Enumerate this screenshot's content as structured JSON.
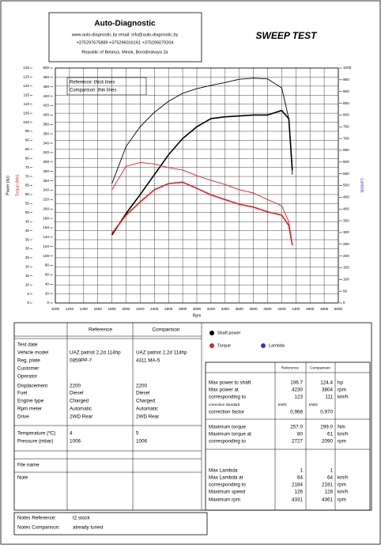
{
  "header": {
    "company": "Auto-Diagnostic",
    "web_email": "www.auto-diagnostic.by    email: info@auto-diagnostic.by",
    "phones": "+375297675889  +375296016161  +375295079204",
    "address": "Republic of Belarus, Minsk, Borodinskaya 2a",
    "title": "SWEEP TEST"
  },
  "chart_data": {
    "type": "line",
    "x_label": "Rpm",
    "y_label": "Power (hp)",
    "y2_label": "Torque (Nm)",
    "y3_label": "Lambda",
    "line_key": [
      "Reference: thick lines",
      "Comparison: thin lines"
    ],
    "xlim": [
      1000,
      5000
    ],
    "xticks": [
      1000,
      1200,
      1400,
      1600,
      1800,
      2000,
      2200,
      2400,
      2600,
      2800,
      3000,
      3200,
      3400,
      3600,
      3800,
      4000,
      4200,
      4400,
      4600,
      4800,
      5000
    ],
    "ylim": [
      0,
      130
    ],
    "yticks": [
      0,
      5,
      10,
      15,
      20,
      25,
      30,
      35,
      40,
      45,
      50,
      55,
      60,
      65,
      70,
      75,
      80,
      85,
      90,
      95,
      100,
      105,
      110,
      115,
      120,
      125,
      130
    ],
    "y2lim": [
      0,
      500
    ],
    "y2ticks": [
      0,
      20,
      40,
      60,
      80,
      100,
      120,
      140,
      160,
      180,
      200,
      220,
      240,
      260,
      280,
      300,
      320,
      340,
      360,
      380,
      400,
      420,
      440,
      460,
      480,
      500
    ],
    "y3lim": [
      0,
      1000
    ],
    "y3ticks": [
      0,
      50,
      100,
      150,
      200,
      250,
      300,
      350,
      400,
      450,
      500,
      550,
      600,
      650,
      700,
      750,
      800,
      850,
      900,
      950,
      1000
    ],
    "grid": true,
    "x": [
      1800,
      2000,
      2200,
      2400,
      2600,
      2800,
      3000,
      3200,
      3400,
      3600,
      3800,
      4000,
      4200,
      4300,
      4350
    ],
    "series": [
      {
        "color": "#000000",
        "line": "thick",
        "values": [
          37.6,
          49.5,
          60,
          71,
          82,
          91,
          97.5,
          102,
          103,
          103.5,
          104,
          104,
          106.5,
          102,
          73.5
        ]
      },
      {
        "color": "#000000",
        "line": "thin",
        "values": [
          66,
          86.6,
          97.6,
          105.5,
          111.6,
          116,
          118.6,
          120.4,
          122,
          123.8,
          124.4,
          124,
          119,
          102,
          71
        ]
      },
      {
        "color": "#e02020",
        "line": "thick",
        "axis": "y2",
        "values": [
          148,
          187,
          215,
          241,
          254,
          257,
          244,
          230,
          220,
          210,
          204,
          194,
          187,
          165,
          123
        ]
      },
      {
        "color": "#e02020",
        "line": "thin",
        "axis": "y2",
        "values": [
          241,
          291,
          299,
          296,
          288,
          283,
          271,
          261,
          252,
          241,
          234,
          220,
          207,
          173,
          123
        ]
      }
    ],
    "legend": [
      {
        "label": "Shaft power",
        "color": "#000000"
      },
      {
        "label": "Torque",
        "color": "#e02020"
      },
      {
        "label": "Lambda",
        "color": "#3a2fd0"
      }
    ]
  },
  "info_table": {
    "headers": [
      "Reference",
      "Comparison"
    ],
    "rows": [
      [
        "Test date"
      ],
      [
        "Vehicle model",
        "UAZ patriot 2,2d 114hp",
        "UAZ patriot 2,2d 114hp"
      ],
      [
        "Reg. plate",
        "0859PP-7",
        "4311 MA-5"
      ],
      [
        "Customer"
      ],
      [
        "Operator"
      ],
      [
        "Displacement",
        "2200",
        "2200"
      ],
      [
        "Fuel",
        "Diesel",
        "Diesel"
      ],
      [
        "Engine type",
        "Charged",
        "Charged"
      ],
      [
        "Rpm meter",
        "Automatic",
        "Automatic"
      ],
      [
        "Drive",
        "2WD Rear",
        "2WD Rear"
      ],
      [
        "Temperature (ºC)",
        "4",
        "5"
      ],
      [
        "Pressure (mbar)",
        "1006",
        "1006"
      ],
      [
        "File name"
      ],
      [
        "Note"
      ]
    ]
  },
  "results": {
    "headers": [
      "Reference",
      "Comparison"
    ],
    "rows": [
      [
        "Max power to shaft",
        "106.7",
        "124.4",
        "hp"
      ],
      [
        "Max power at",
        "4230",
        "3804",
        "rpm"
      ],
      [
        "corresponding to",
        "123",
        "111",
        "km/h"
      ],
      [
        "correction standard",
        "EWG",
        "EWG"
      ],
      [
        "correction factor",
        "0,968",
        "0,970"
      ],
      [
        "Maximum torque",
        "257.0",
        "299.0",
        "Nm"
      ],
      [
        "Maximum torque at",
        "80",
        "61",
        "km/h"
      ],
      [
        "corresponding to",
        "2727",
        "2090",
        "rpm"
      ],
      [
        "Max Lambda",
        "1",
        "1"
      ],
      [
        "Max Lambda at",
        "64",
        "64",
        "km/h"
      ],
      [
        "corresponding to",
        "2184",
        "2181",
        "rpm"
      ],
      [
        "Maximum speed",
        "126",
        "128",
        "km/h"
      ],
      [
        "Maximum rpm",
        "4331",
        "4361",
        "rpm"
      ]
    ]
  },
  "notes": {
    "rows": [
      [
        "Notes Reference:",
        "t2 stock"
      ],
      [
        "Notes Comparison:",
        "already tuned"
      ]
    ]
  }
}
